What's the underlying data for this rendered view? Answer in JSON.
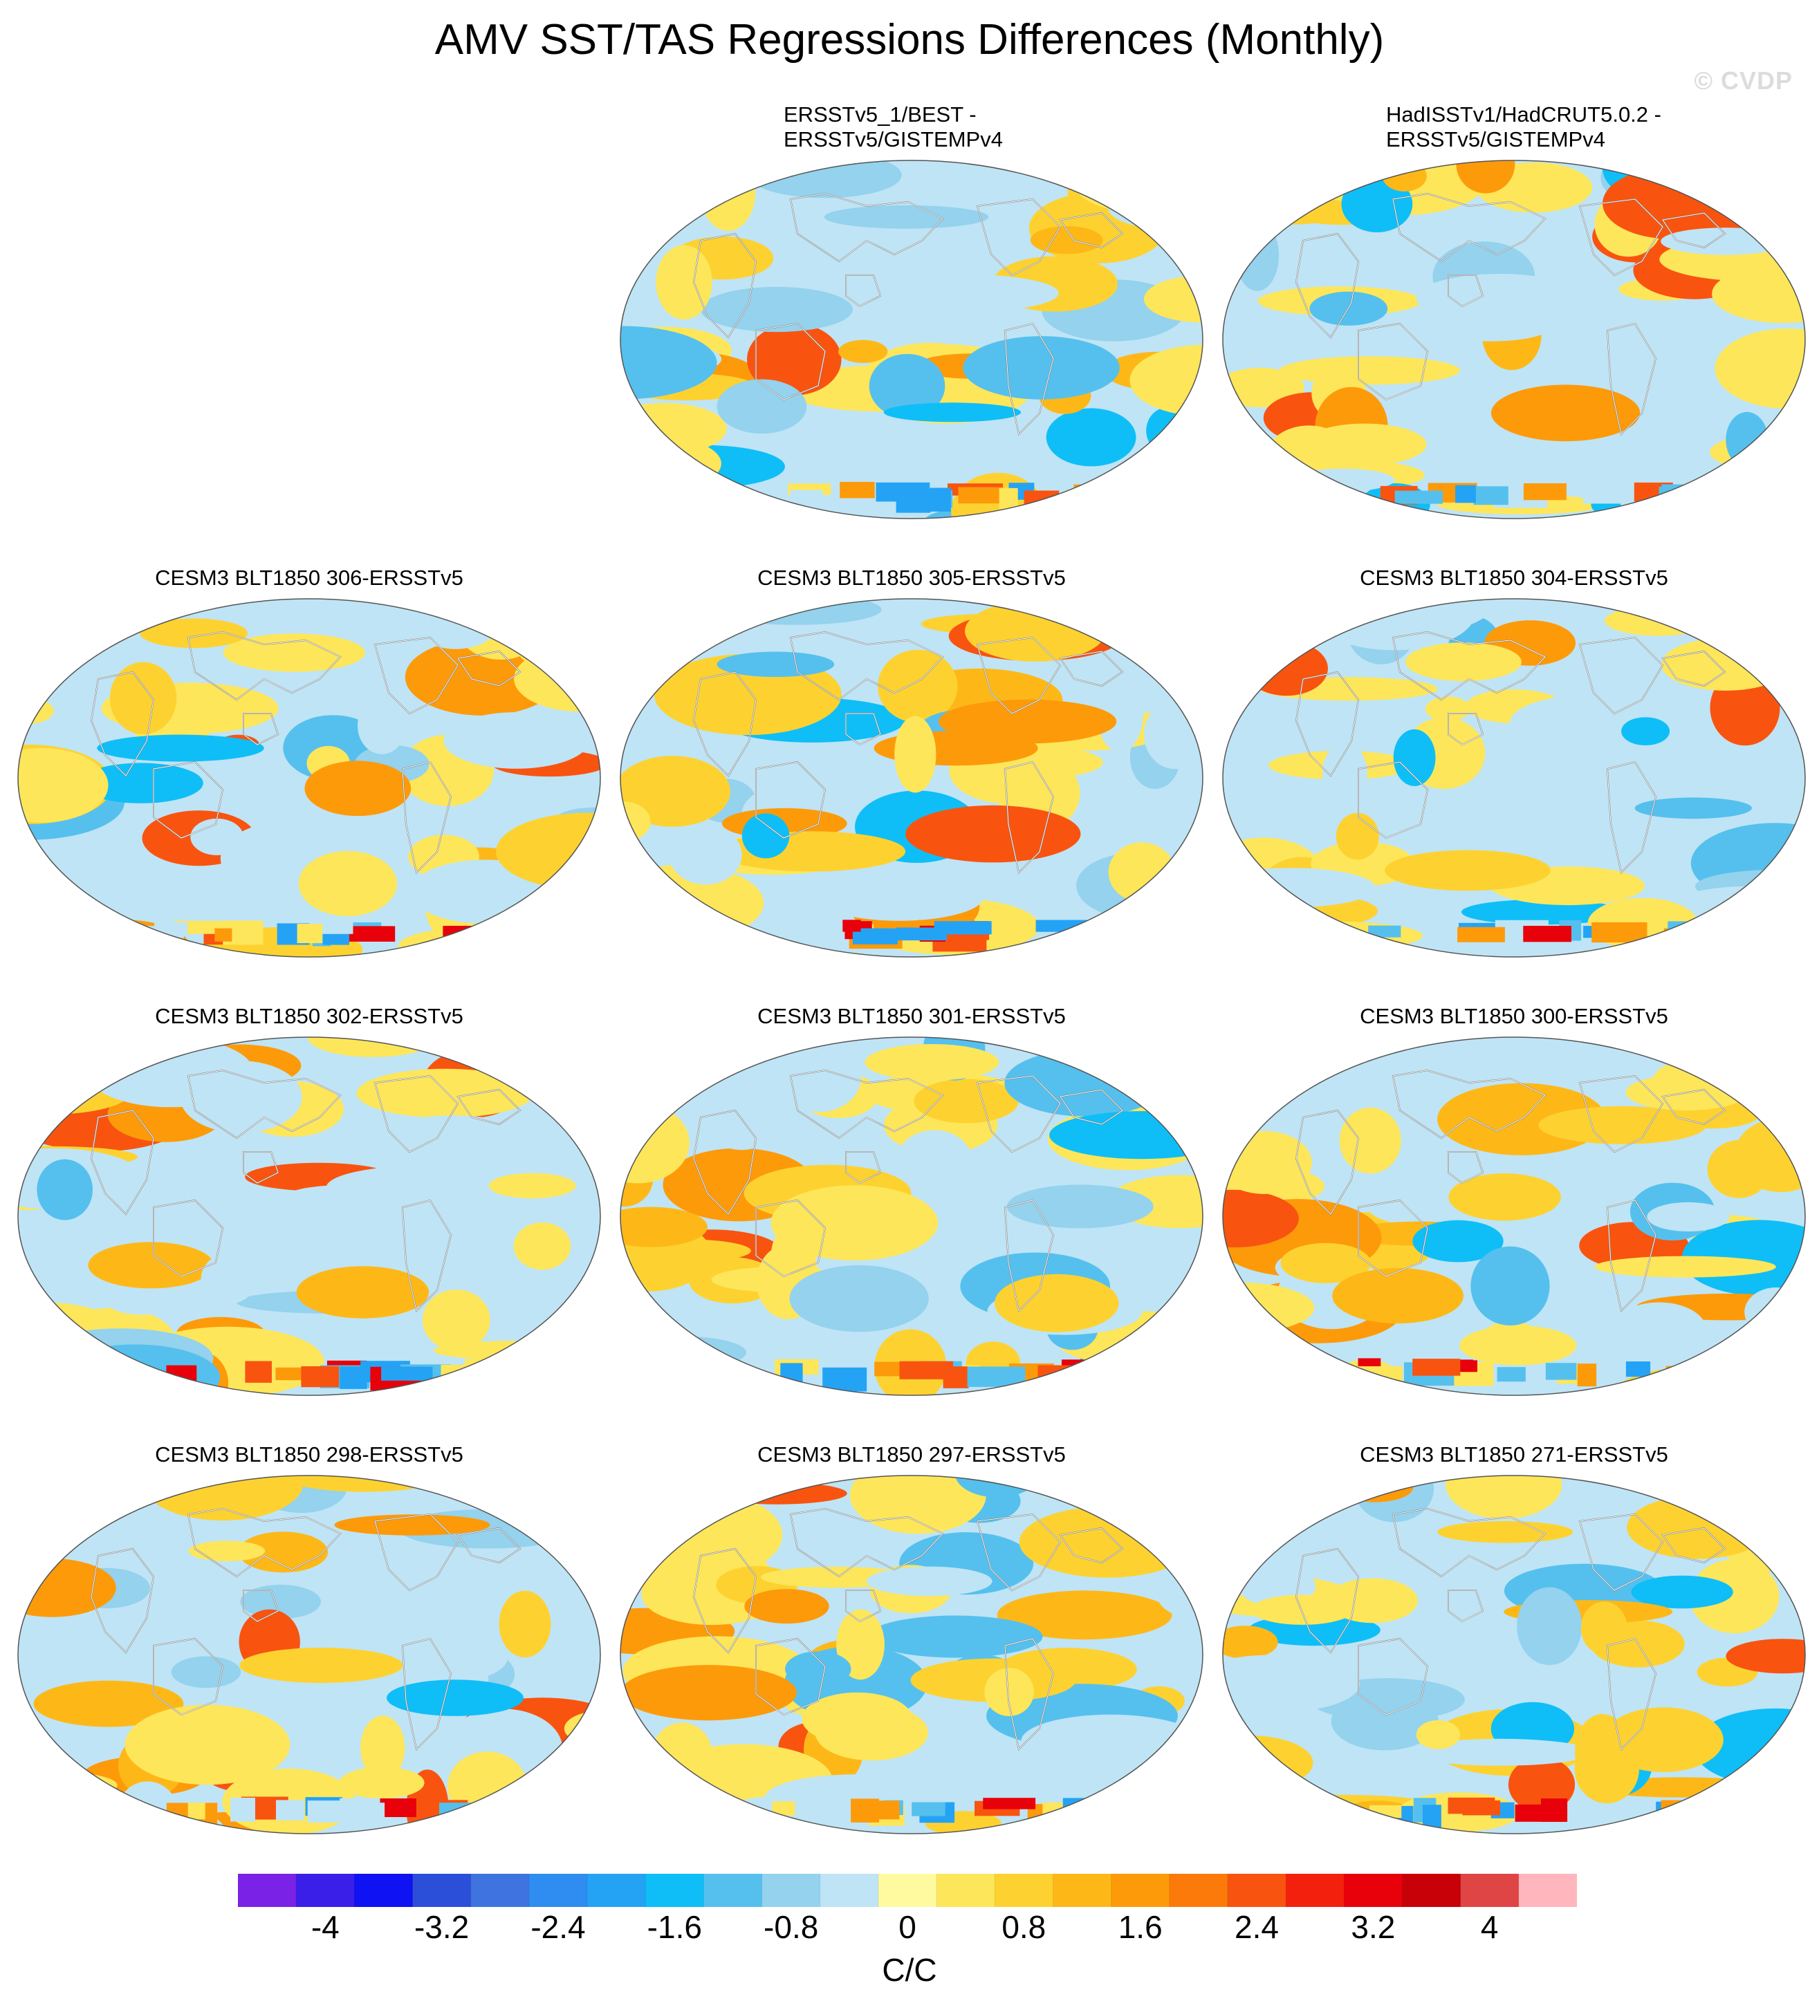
{
  "figure": {
    "title": "AMV SST/TAS Regressions Differences (Monthly)",
    "watermark": "© CVDP"
  },
  "panels": [
    {
      "id": "p1",
      "row": 0,
      "col": 1,
      "title": "ERSSTv5_1/BEST -\nERSSTv5/GISTEMPv4",
      "seed": 11
    },
    {
      "id": "p2",
      "row": 0,
      "col": 2,
      "title": "HadISSTv1/HadCRUT5.0.2 -\nERSSTv5/GISTEMPv4",
      "seed": 23
    },
    {
      "id": "p3",
      "row": 1,
      "col": 0,
      "title": "CESM3 BLT1850 306-ERSSTv5",
      "seed": 37
    },
    {
      "id": "p4",
      "row": 1,
      "col": 1,
      "title": "CESM3 BLT1850 305-ERSSTv5",
      "seed": 41
    },
    {
      "id": "p5",
      "row": 1,
      "col": 2,
      "title": "CESM3 BLT1850 304-ERSSTv5",
      "seed": 53
    },
    {
      "id": "p6",
      "row": 2,
      "col": 0,
      "title": "CESM3 BLT1850 302-ERSSTv5",
      "seed": 67
    },
    {
      "id": "p7",
      "row": 2,
      "col": 1,
      "title": "CESM3 BLT1850 301-ERSSTv5",
      "seed": 71
    },
    {
      "id": "p8",
      "row": 2,
      "col": 2,
      "title": "CESM3 BLT1850 300-ERSSTv5",
      "seed": 83
    },
    {
      "id": "p9",
      "row": 3,
      "col": 0,
      "title": "CESM3 BLT1850 298-ERSSTv5",
      "seed": 97
    },
    {
      "id": "p10",
      "row": 3,
      "col": 1,
      "title": "CESM3 BLT1850 297-ERSSTv5",
      "seed": 101
    },
    {
      "id": "p11",
      "row": 3,
      "col": 2,
      "title": "CESM3 BLT1850 271-ERSSTv5",
      "seed": 113
    }
  ],
  "colorbar": {
    "units": "C/C",
    "levels": [
      -4.4,
      -4,
      -3.6,
      -3.2,
      -2.8,
      -2.4,
      -2,
      -1.6,
      -1.2,
      -0.8,
      -0.4,
      0,
      0.4,
      0.8,
      1.2,
      1.6,
      2,
      2.4,
      2.8,
      3.2,
      3.6,
      4,
      4.4
    ],
    "colors": [
      "#7a22e6",
      "#3a1fe8",
      "#0f12f2",
      "#2b4fd8",
      "#3f74e0",
      "#2f8cf0",
      "#24a3f5",
      "#0fbef7",
      "#55c0ee",
      "#94d2ee",
      "#bfe4f5",
      "#fffaa0",
      "#fde65a",
      "#fdd230",
      "#fdb818",
      "#fd9a0a",
      "#fb7a0a",
      "#f85410",
      "#f4200e",
      "#e8000a",
      "#c80008",
      "#e04545",
      "#ffb6bc"
    ],
    "tick_values": [
      -4,
      -3.2,
      -2.4,
      -1.6,
      -0.8,
      0,
      0.8,
      1.6,
      2.4,
      3.2,
      4
    ],
    "tick_labels": [
      "-4",
      "-3.2",
      "-2.4",
      "-1.6",
      "-0.8",
      "0",
      "0.8",
      "1.6",
      "2.4",
      "3.2",
      "4"
    ]
  }
}
